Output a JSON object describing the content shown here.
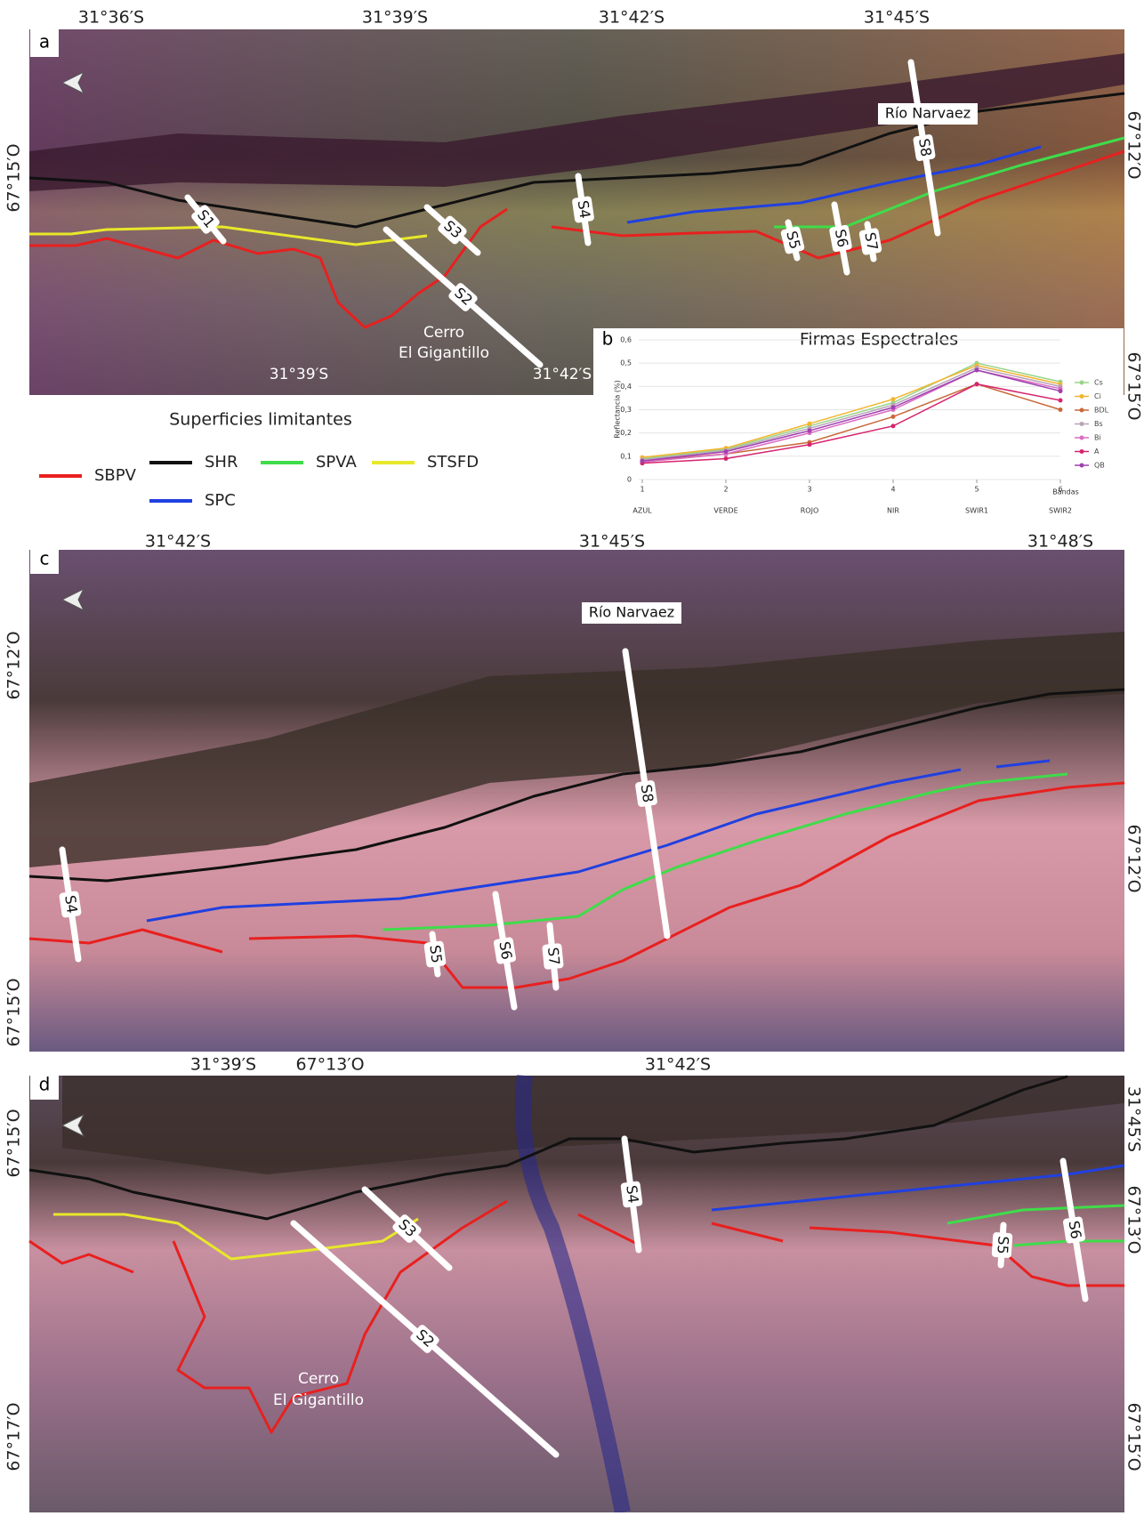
{
  "panels": [
    {
      "label": "a",
      "top_coords": [
        "31°36′S",
        "31°39′S",
        "31°42′S",
        "31°45′S"
      ],
      "left_coords": [
        "67°15′O"
      ],
      "right_coords": [
        "67°12′O",
        "67°15′O"
      ],
      "inner_coords": [
        "31°39′S",
        "31°42′S"
      ],
      "river": "Río Narvaez",
      "hill": [
        "Cerro",
        "El Gigantillo"
      ],
      "sections": [
        "S1",
        "S2",
        "S3",
        "S4",
        "S5",
        "S6",
        "S7",
        "S8"
      ]
    },
    {
      "label": "c",
      "top_coords": [
        "31°42′S",
        "31°45′S",
        "31°48′S"
      ],
      "left_coords": [
        "67°12′O",
        "67°15′O"
      ],
      "right_coords": [
        "67°12′O"
      ],
      "river": "Río Narvaez",
      "sections": [
        "S4",
        "S5",
        "S6",
        "S7",
        "S8"
      ]
    },
    {
      "label": "d",
      "top_coords": [
        "31°39′S",
        "67°13′O",
        "31°42′S"
      ],
      "left_coords": [
        "67°15′O",
        "67°17′O"
      ],
      "right_coords": [
        "31°45′S",
        "67°13′O",
        "67°15′O"
      ],
      "hill": [
        "Cerro",
        "El Gigantillo"
      ],
      "sections": [
        "S2",
        "S3",
        "S4",
        "S5",
        "S6"
      ]
    }
  ],
  "legend": {
    "title": "Superficies limitantes",
    "items": [
      {
        "name": "SBPV",
        "color": "#e8201f"
      },
      {
        "name": "SHR",
        "color": "#111111"
      },
      {
        "name": "SPVA",
        "color": "#3fdc4a"
      },
      {
        "name": "STSFD",
        "color": "#e8e82a"
      },
      {
        "name": "SPC",
        "color": "#2040e0"
      }
    ]
  },
  "chart_panel_label": "b",
  "chart_data": {
    "type": "line",
    "title": "Firmas Espectrales",
    "y_label": "Reflectancia (%)",
    "x_label": "Bandas",
    "x": [
      1,
      2,
      3,
      4,
      5,
      6
    ],
    "band_names": [
      "AZUL",
      "VERDE",
      "ROJO",
      "NIR",
      "SWIR1",
      "SWIR2"
    ],
    "xlim": [
      1,
      6
    ],
    "xticks": [
      1,
      2,
      3,
      4,
      5,
      6
    ],
    "ylim": [
      0,
      0.6
    ],
    "yticks": [
      0,
      {
        "value": 0.1,
        "label": "0,1"
      },
      {
        "value": 0.2,
        "label": "0,2"
      },
      {
        "value": 0.3,
        "label": "0,3"
      },
      {
        "value": 0.4,
        "label": "0,4"
      },
      {
        "value": 0.5,
        "label": "0,5"
      },
      {
        "value": 0.6,
        "label": "0,6"
      }
    ],
    "series": [
      {
        "name": "Cs",
        "color": "#9ad487",
        "values": [
          0.09,
          0.13,
          0.23,
          0.33,
          0.5,
          0.42
        ]
      },
      {
        "name": "Ci",
        "color": "#f2b52e",
        "values": [
          0.095,
          0.135,
          0.24,
          0.345,
          0.49,
          0.41
        ]
      },
      {
        "name": "BDL",
        "color": "#c8693a",
        "values": [
          0.08,
          0.11,
          0.16,
          0.27,
          0.41,
          0.3
        ]
      },
      {
        "name": "Bs",
        "color": "#b9a3b9",
        "values": [
          0.085,
          0.125,
          0.22,
          0.32,
          0.48,
          0.4
        ]
      },
      {
        "name": "Bi",
        "color": "#da6cc2",
        "values": [
          0.075,
          0.11,
          0.2,
          0.3,
          0.47,
          0.39
        ]
      },
      {
        "name": "A",
        "color": "#d6246e",
        "values": [
          0.07,
          0.09,
          0.15,
          0.23,
          0.41,
          0.34
        ]
      },
      {
        "name": "QB",
        "color": "#a040b0",
        "values": [
          0.08,
          0.12,
          0.21,
          0.31,
          0.47,
          0.38
        ]
      }
    ]
  }
}
